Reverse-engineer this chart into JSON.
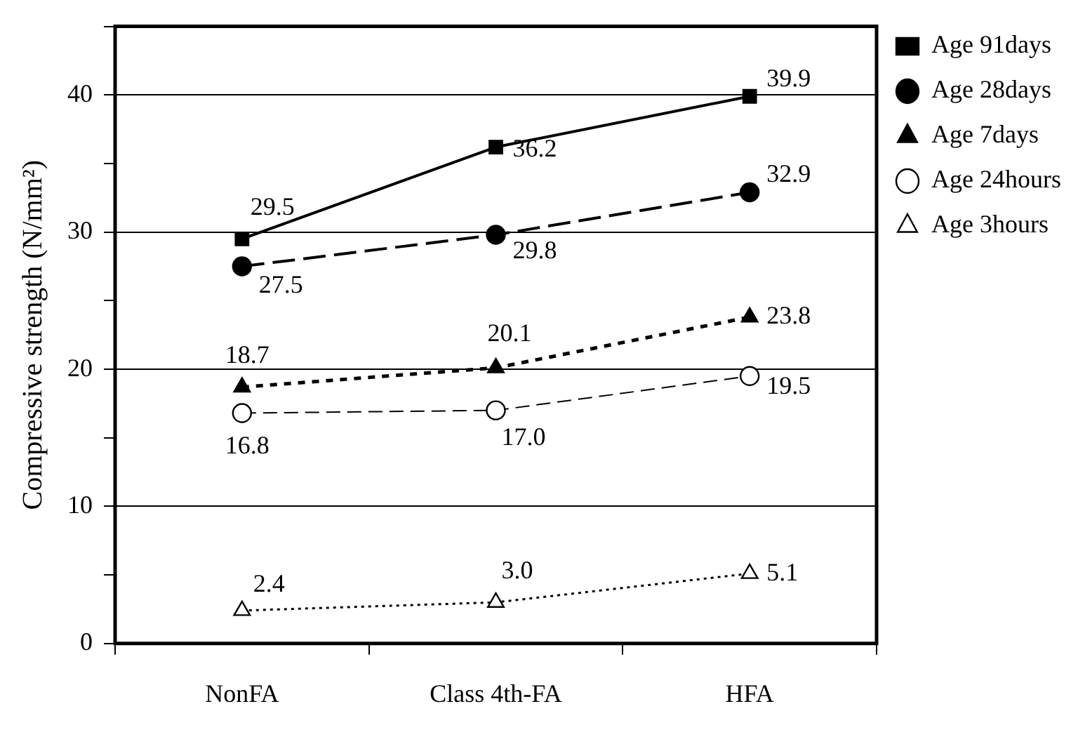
{
  "chart_data": {
    "type": "line",
    "ylabel": "Compressive strength (N/mm²)",
    "categories": [
      "NonFA",
      "Class 4th-FA",
      "HFA"
    ],
    "ylim": [
      0,
      45
    ],
    "yticks": [
      0,
      {
        "value": 5,
        "label": null
      },
      10,
      {
        "value": 15,
        "label": null
      },
      20,
      {
        "value": 25,
        "label": null
      },
      30,
      {
        "value": 35,
        "label": null
      },
      40,
      {
        "value": 45,
        "label": null
      }
    ],
    "grid": "y",
    "legend": "top right",
    "series": [
      {
        "name": "Age 91days",
        "color": "#000000",
        "marker": "square",
        "line_style": "solid",
        "values": [
          29.5,
          36.2,
          39.9
        ],
        "value_labels": [
          "29.5",
          "36.2",
          "39.9"
        ]
      },
      {
        "name": "Age 28days",
        "color": "#000000",
        "marker": "circle",
        "line_style": "dashed",
        "values": [
          27.5,
          29.8,
          32.9
        ],
        "value_labels": [
          "27.5",
          "29.8",
          "32.9"
        ]
      },
      {
        "name": "Age 7days",
        "color": "#000000",
        "marker": "triangle",
        "line_style": "dashed",
        "values": [
          18.7,
          20.1,
          23.8
        ],
        "value_labels": [
          "18.7",
          "20.1",
          "23.8"
        ]
      },
      {
        "name": "Age 24hours",
        "color": "#000000",
        "marker": "circle",
        "line_style": "dashed",
        "values": [
          16.8,
          17.0,
          19.5
        ],
        "value_labels": [
          "16.8",
          "17.0",
          "19.5"
        ]
      },
      {
        "name": "Age 3hours",
        "color": "#000000",
        "marker": "triangle",
        "line_style": "dotted",
        "values": [
          2.4,
          3.0,
          5.1
        ],
        "value_labels": [
          "2.4",
          "3.0",
          "5.1"
        ]
      }
    ]
  }
}
